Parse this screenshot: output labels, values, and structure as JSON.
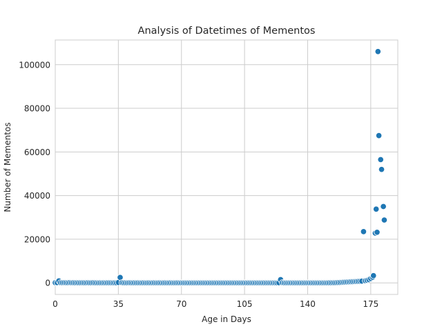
{
  "chart_data": {
    "type": "scatter",
    "title": "Analysis of Datetimes of Mementos",
    "xlabel": "Age in Days",
    "ylabel": "Number of Mementos",
    "xlim": [
      0,
      190
    ],
    "ylim": [
      -5300,
      111300
    ],
    "xticks": [
      0,
      35,
      70,
      105,
      140,
      175
    ],
    "yticks": [
      0,
      20000,
      40000,
      60000,
      80000,
      100000
    ],
    "xtick_labels": [
      "0",
      "35",
      "70",
      "105",
      "140",
      "175"
    ],
    "ytick_labels": [
      "0",
      "20000",
      "40000",
      "60000",
      "80000",
      "100000"
    ],
    "grid": true,
    "point_color": "#1f77b4",
    "points": [
      {
        "x": 0,
        "y": 100
      },
      {
        "x": 1,
        "y": 150
      },
      {
        "x": 2,
        "y": 900
      },
      {
        "x": 3,
        "y": 120
      },
      {
        "x": 4,
        "y": 80
      },
      {
        "x": 5,
        "y": 90
      },
      {
        "x": 6,
        "y": 70
      },
      {
        "x": 7,
        "y": 60
      },
      {
        "x": 8,
        "y": 100
      },
      {
        "x": 9,
        "y": 50
      },
      {
        "x": 10,
        "y": 60
      },
      {
        "x": 11,
        "y": 40
      },
      {
        "x": 12,
        "y": 50
      },
      {
        "x": 13,
        "y": 40
      },
      {
        "x": 14,
        "y": 30
      },
      {
        "x": 15,
        "y": 50
      },
      {
        "x": 16,
        "y": 40
      },
      {
        "x": 17,
        "y": 30
      },
      {
        "x": 18,
        "y": 60
      },
      {
        "x": 19,
        "y": 40
      },
      {
        "x": 20,
        "y": 30
      },
      {
        "x": 21,
        "y": 70
      },
      {
        "x": 22,
        "y": 40
      },
      {
        "x": 23,
        "y": 30
      },
      {
        "x": 24,
        "y": 20
      },
      {
        "x": 25,
        "y": 30
      },
      {
        "x": 26,
        "y": 20
      },
      {
        "x": 27,
        "y": 30
      },
      {
        "x": 28,
        "y": 20
      },
      {
        "x": 29,
        "y": 30
      },
      {
        "x": 30,
        "y": 40
      },
      {
        "x": 31,
        "y": 30
      },
      {
        "x": 32,
        "y": 20
      },
      {
        "x": 33,
        "y": 30
      },
      {
        "x": 34,
        "y": 40
      },
      {
        "x": 35,
        "y": 200
      },
      {
        "x": 36,
        "y": 2500
      },
      {
        "x": 37,
        "y": 100
      },
      {
        "x": 38,
        "y": 40
      },
      {
        "x": 39,
        "y": 30
      },
      {
        "x": 40,
        "y": 20
      },
      {
        "x": 41,
        "y": 50
      },
      {
        "x": 42,
        "y": 30
      },
      {
        "x": 43,
        "y": 20
      },
      {
        "x": 44,
        "y": 30
      },
      {
        "x": 45,
        "y": 20
      },
      {
        "x": 46,
        "y": 30
      },
      {
        "x": 47,
        "y": 20
      },
      {
        "x": 48,
        "y": 20
      },
      {
        "x": 49,
        "y": 30
      },
      {
        "x": 50,
        "y": 20
      },
      {
        "x": 51,
        "y": 20
      },
      {
        "x": 52,
        "y": 30
      },
      {
        "x": 53,
        "y": 20
      },
      {
        "x": 54,
        "y": 20
      },
      {
        "x": 55,
        "y": 30
      },
      {
        "x": 56,
        "y": 20
      },
      {
        "x": 57,
        "y": 20
      },
      {
        "x": 58,
        "y": 30
      },
      {
        "x": 59,
        "y": 20
      },
      {
        "x": 60,
        "y": 20
      },
      {
        "x": 61,
        "y": 30
      },
      {
        "x": 62,
        "y": 20
      },
      {
        "x": 63,
        "y": 20
      },
      {
        "x": 64,
        "y": 30
      },
      {
        "x": 65,
        "y": 20
      },
      {
        "x": 66,
        "y": 20
      },
      {
        "x": 67,
        "y": 20
      },
      {
        "x": 68,
        "y": 30
      },
      {
        "x": 69,
        "y": 20
      },
      {
        "x": 70,
        "y": 20
      },
      {
        "x": 71,
        "y": 20
      },
      {
        "x": 72,
        "y": 20
      },
      {
        "x": 73,
        "y": 20
      },
      {
        "x": 74,
        "y": 20
      },
      {
        "x": 75,
        "y": 20
      },
      {
        "x": 76,
        "y": 20
      },
      {
        "x": 77,
        "y": 20
      },
      {
        "x": 78,
        "y": 20
      },
      {
        "x": 79,
        "y": 20
      },
      {
        "x": 80,
        "y": 20
      },
      {
        "x": 81,
        "y": 20
      },
      {
        "x": 82,
        "y": 20
      },
      {
        "x": 83,
        "y": 20
      },
      {
        "x": 84,
        "y": 20
      },
      {
        "x": 85,
        "y": 20
      },
      {
        "x": 86,
        "y": 20
      },
      {
        "x": 87,
        "y": 20
      },
      {
        "x": 88,
        "y": 20
      },
      {
        "x": 89,
        "y": 20
      },
      {
        "x": 90,
        "y": 20
      },
      {
        "x": 91,
        "y": 20
      },
      {
        "x": 92,
        "y": 20
      },
      {
        "x": 93,
        "y": 20
      },
      {
        "x": 94,
        "y": 20
      },
      {
        "x": 95,
        "y": 20
      },
      {
        "x": 96,
        "y": 20
      },
      {
        "x": 97,
        "y": 20
      },
      {
        "x": 98,
        "y": 20
      },
      {
        "x": 99,
        "y": 20
      },
      {
        "x": 100,
        "y": 20
      },
      {
        "x": 101,
        "y": 20
      },
      {
        "x": 102,
        "y": 20
      },
      {
        "x": 103,
        "y": 20
      },
      {
        "x": 104,
        "y": 20
      },
      {
        "x": 105,
        "y": 20
      },
      {
        "x": 106,
        "y": 20
      },
      {
        "x": 107,
        "y": 20
      },
      {
        "x": 108,
        "y": 20
      },
      {
        "x": 109,
        "y": 20
      },
      {
        "x": 110,
        "y": 20
      },
      {
        "x": 111,
        "y": 20
      },
      {
        "x": 112,
        "y": 20
      },
      {
        "x": 113,
        "y": 20
      },
      {
        "x": 114,
        "y": 20
      },
      {
        "x": 115,
        "y": 20
      },
      {
        "x": 116,
        "y": 20
      },
      {
        "x": 117,
        "y": 20
      },
      {
        "x": 118,
        "y": 20
      },
      {
        "x": 119,
        "y": 20
      },
      {
        "x": 120,
        "y": 20
      },
      {
        "x": 121,
        "y": 20
      },
      {
        "x": 122,
        "y": 20
      },
      {
        "x": 123,
        "y": 20
      },
      {
        "x": 124,
        "y": 100
      },
      {
        "x": 125,
        "y": 1500
      },
      {
        "x": 126,
        "y": 100
      },
      {
        "x": 127,
        "y": 20
      },
      {
        "x": 128,
        "y": 20
      },
      {
        "x": 129,
        "y": 20
      },
      {
        "x": 130,
        "y": 20
      },
      {
        "x": 131,
        "y": 20
      },
      {
        "x": 132,
        "y": 20
      },
      {
        "x": 133,
        "y": 20
      },
      {
        "x": 134,
        "y": 20
      },
      {
        "x": 135,
        "y": 20
      },
      {
        "x": 136,
        "y": 20
      },
      {
        "x": 137,
        "y": 20
      },
      {
        "x": 138,
        "y": 20
      },
      {
        "x": 139,
        "y": 20
      },
      {
        "x": 140,
        "y": 20
      },
      {
        "x": 141,
        "y": 20
      },
      {
        "x": 142,
        "y": 20
      },
      {
        "x": 143,
        "y": 20
      },
      {
        "x": 144,
        "y": 20
      },
      {
        "x": 145,
        "y": 20
      },
      {
        "x": 146,
        "y": 20
      },
      {
        "x": 147,
        "y": 20
      },
      {
        "x": 148,
        "y": 20
      },
      {
        "x": 149,
        "y": 20
      },
      {
        "x": 150,
        "y": 20
      },
      {
        "x": 151,
        "y": 20
      },
      {
        "x": 152,
        "y": 30
      },
      {
        "x": 153,
        "y": 40
      },
      {
        "x": 154,
        "y": 50
      },
      {
        "x": 155,
        "y": 60
      },
      {
        "x": 156,
        "y": 100
      },
      {
        "x": 157,
        "y": 150
      },
      {
        "x": 158,
        "y": 200
      },
      {
        "x": 159,
        "y": 250
      },
      {
        "x": 160,
        "y": 300
      },
      {
        "x": 161,
        "y": 350
      },
      {
        "x": 162,
        "y": 400
      },
      {
        "x": 163,
        "y": 450
      },
      {
        "x": 164,
        "y": 500
      },
      {
        "x": 165,
        "y": 550
      },
      {
        "x": 166,
        "y": 600
      },
      {
        "x": 167,
        "y": 650
      },
      {
        "x": 168,
        "y": 700
      },
      {
        "x": 169,
        "y": 750
      },
      {
        "x": 170,
        "y": 800
      },
      {
        "x": 171,
        "y": 23500
      },
      {
        "x": 172,
        "y": 1000
      },
      {
        "x": 173,
        "y": 1200
      },
      {
        "x": 174,
        "y": 1500
      },
      {
        "x": 175,
        "y": 2000
      },
      {
        "x": 176,
        "y": 2600
      },
      {
        "x": 176.5,
        "y": 3300
      },
      {
        "x": 177.5,
        "y": 22800
      },
      {
        "x": 178,
        "y": 33800
      },
      {
        "x": 178.5,
        "y": 23200
      },
      {
        "x": 179,
        "y": 106000
      },
      {
        "x": 179.5,
        "y": 67500
      },
      {
        "x": 180.5,
        "y": 56500
      },
      {
        "x": 181,
        "y": 52000
      },
      {
        "x": 182,
        "y": 35000
      },
      {
        "x": 182.5,
        "y": 28800
      }
    ]
  }
}
